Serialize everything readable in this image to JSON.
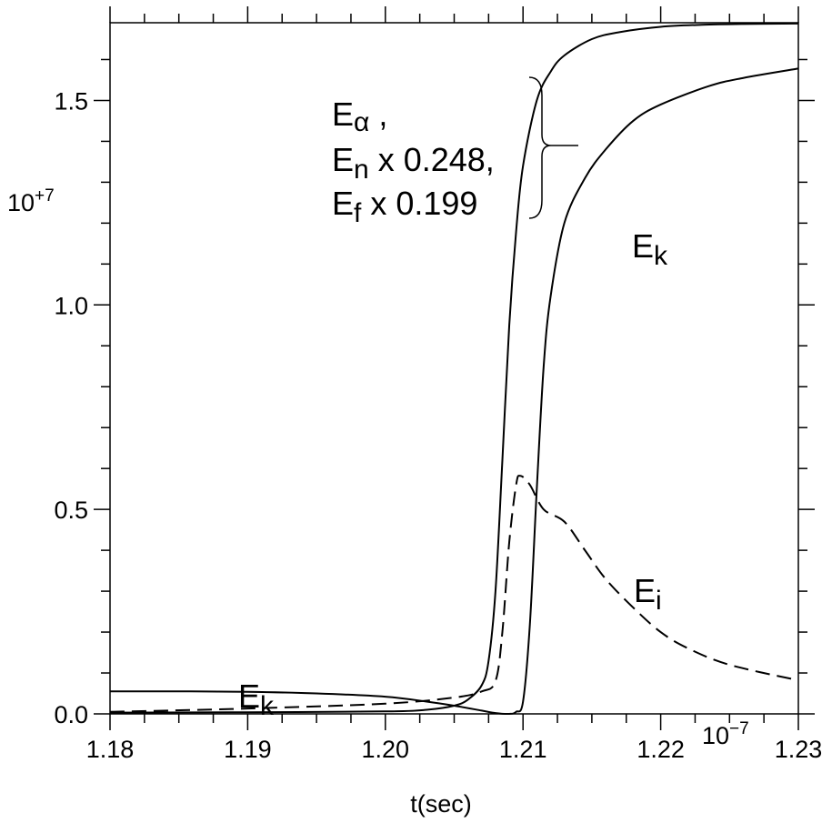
{
  "chart_data": {
    "type": "line",
    "x_label": "t(sec)",
    "x_multiplier": {
      "base": "10",
      "exponent": "−7"
    },
    "y_multiplier": {
      "base": "10",
      "exponent": "+7"
    },
    "xlim": [
      1.18,
      1.23
    ],
    "xticks": [
      1.18,
      1.19,
      {
        "value": 1.2,
        "label": "1.20"
      },
      1.21,
      1.22,
      1.23
    ],
    "ylim": [
      0,
      1.69
    ],
    "yticks": [
      {
        "value": 0,
        "label": "0.0"
      },
      0.5,
      {
        "value": 1,
        "label": "1.0"
      },
      1.5
    ],
    "series": [
      {
        "color": "#000000",
        "line_style": "solid",
        "x": [
          1.18,
          1.19,
          1.2,
          1.203,
          1.205,
          1.206,
          1.207,
          1.2075,
          1.208,
          1.2085,
          1.209,
          1.2095,
          1.21,
          1.211,
          1.212,
          1.213,
          1.215,
          1.217,
          1.22,
          1.223,
          1.226,
          1.23
        ],
        "values": [
          0.003,
          0.004,
          0.006,
          0.01,
          0.02,
          0.035,
          0.07,
          0.13,
          0.3,
          0.62,
          0.95,
          1.18,
          1.34,
          1.5,
          1.57,
          1.61,
          1.65,
          1.667,
          1.68,
          1.685,
          1.687,
          1.688
        ]
      },
      {
        "color": "#000000",
        "line_style": "solid",
        "x": [
          1.18,
          1.185,
          1.19,
          1.195,
          1.2,
          1.203,
          1.205,
          1.207,
          1.208,
          1.209,
          1.2095,
          1.21,
          1.2105,
          1.211,
          1.2115,
          1.212,
          1.213,
          1.2145,
          1.216,
          1.218,
          1.22,
          1.2235,
          1.226,
          1.23
        ],
        "values": [
          0.055,
          0.055,
          0.054,
          0.05,
          0.042,
          0.03,
          0.02,
          0.008,
          0.002,
          0.0,
          0.005,
          0.03,
          0.22,
          0.55,
          0.85,
          1.02,
          1.2,
          1.31,
          1.38,
          1.45,
          1.49,
          1.535,
          1.555,
          1.578
        ]
      },
      {
        "color": "#000000",
        "line_style": "dashed",
        "x": [
          1.18,
          1.19,
          1.2,
          1.205,
          1.207,
          1.208,
          1.2085,
          1.209,
          1.2095,
          1.2098,
          1.2105,
          1.2115,
          1.213,
          1.2145,
          1.216,
          1.218,
          1.22,
          1.222,
          1.225,
          1.23
        ],
        "values": [
          0.005,
          0.013,
          0.025,
          0.04,
          0.055,
          0.08,
          0.2,
          0.42,
          0.56,
          0.582,
          0.56,
          0.5,
          0.47,
          0.4,
          0.33,
          0.26,
          0.2,
          0.16,
          0.12,
          0.082
        ]
      }
    ],
    "annotations": [
      {
        "base": "E",
        "sub": "α",
        "rest": " ,"
      },
      {
        "base": "E",
        "sub": "n",
        "rest": " x 0.248,"
      },
      {
        "base": "E",
        "sub": "f",
        "rest": " x 0.199"
      },
      {
        "base": "E",
        "sub": "k"
      },
      {
        "base": "E",
        "sub": "i"
      },
      {
        "base": "E",
        "sub": "k"
      }
    ]
  }
}
